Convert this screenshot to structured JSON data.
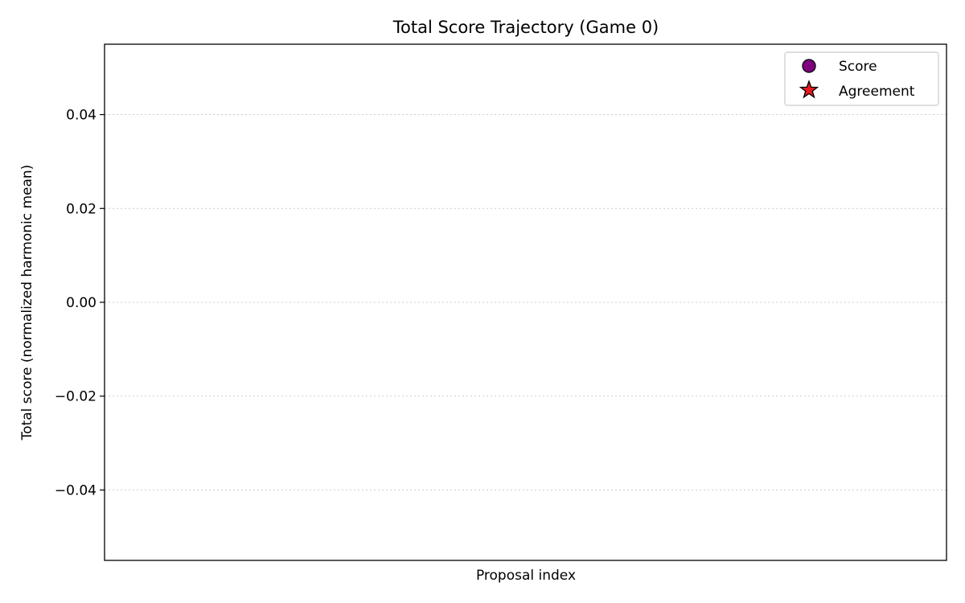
{
  "chart_data": {
    "type": "scatter",
    "title": "Total Score Trajectory (Game 0)",
    "xlabel": "Proposal index",
    "ylabel": "Total score (normalized harmonic mean)",
    "ylim": [
      -0.055,
      0.055
    ],
    "yticks": [
      0.04,
      0.02,
      0.0,
      -0.02,
      -0.04
    ],
    "yticklabels": [
      "0.04",
      "0.02",
      "0.00",
      "−0.02",
      "−0.04"
    ],
    "xticks": [],
    "grid": "y-dotted",
    "legend_position": "top-right",
    "legend": [
      {
        "label": "Score",
        "marker": "circle",
        "color": "#800080"
      },
      {
        "label": "Agreement",
        "marker": "star",
        "color": "#e41a1c"
      }
    ],
    "series": [
      {
        "name": "Score",
        "x": [],
        "y": []
      },
      {
        "name": "Agreement",
        "x": [],
        "y": []
      }
    ]
  }
}
